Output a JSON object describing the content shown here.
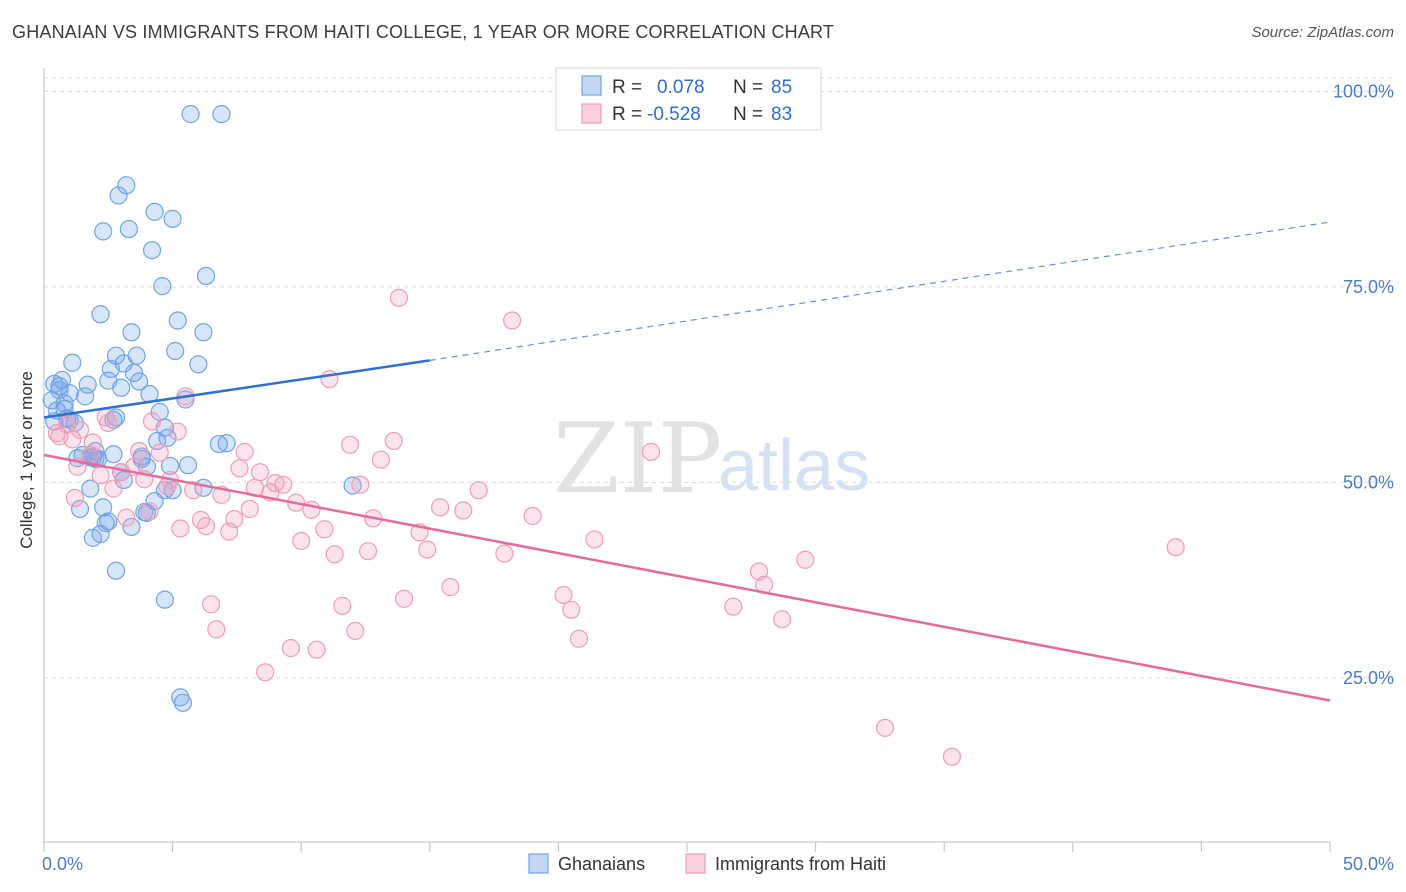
{
  "title": "GHANAIAN VS IMMIGRANTS FROM HAITI COLLEGE, 1 YEAR OR MORE CORRELATION CHART",
  "source": "Source: ZipAtlas.com",
  "watermark": {
    "zip": "ZIP",
    "atlas": "atlas"
  },
  "legend": {
    "r_label": "R =",
    "n_label": "N =",
    "rows": [
      {
        "r": "0.078",
        "n": "85"
      },
      {
        "r": "-0.528",
        "n": "83"
      }
    ]
  },
  "bottom_legend": [
    "Ghanaians",
    "Immigrants from Haiti"
  ],
  "chart_data": {
    "type": "scatter",
    "xlabel": "",
    "ylabel": "College, 1 year or more",
    "xlim": [
      0,
      50
    ],
    "ylim": [
      4,
      103
    ],
    "x_tick_labels": [
      "0.0%",
      "50.0%"
    ],
    "y_ticks": [
      25,
      50,
      75,
      100
    ],
    "y_tick_labels": [
      "25.0%",
      "50.0%",
      "75.0%",
      "100.0%"
    ],
    "grid": true,
    "legend_position": "top-center",
    "series": [
      {
        "name": "Ghanaians",
        "color": "#6fa3e8",
        "line_color": "#2f6fce",
        "trend": {
          "x0": 0,
          "y0": 58.3,
          "x1": 15,
          "y1": 65.6,
          "x_dash_end": 50,
          "y_dash_end": 83.3
        },
        "points": [
          [
            0.3,
            60.5
          ],
          [
            0.4,
            62.6
          ],
          [
            0.5,
            59.2
          ],
          [
            0.6,
            61.8
          ],
          [
            0.7,
            63.1
          ],
          [
            0.8,
            60.1
          ],
          [
            0.9,
            58.2
          ],
          [
            1.0,
            61.4
          ],
          [
            1.1,
            65.3
          ],
          [
            1.2,
            57.6
          ],
          [
            1.3,
            53.1
          ],
          [
            1.4,
            46.6
          ],
          [
            1.6,
            61.0
          ],
          [
            1.7,
            62.5
          ],
          [
            1.8,
            49.2
          ],
          [
            1.9,
            53.2
          ],
          [
            2.0,
            54.0
          ],
          [
            2.1,
            53.0
          ],
          [
            2.2,
            71.5
          ],
          [
            2.3,
            82.1
          ],
          [
            2.4,
            44.8
          ],
          [
            2.5,
            63.0
          ],
          [
            2.6,
            64.5
          ],
          [
            2.7,
            58.0
          ],
          [
            2.8,
            66.2
          ],
          [
            2.9,
            86.7
          ],
          [
            3.0,
            62.1
          ],
          [
            3.1,
            65.2
          ],
          [
            3.2,
            88.0
          ],
          [
            3.3,
            82.4
          ],
          [
            3.4,
            69.2
          ],
          [
            3.5,
            64.0
          ],
          [
            3.6,
            66.2
          ],
          [
            3.7,
            62.9
          ],
          [
            3.8,
            53.0
          ],
          [
            3.9,
            46.2
          ],
          [
            4.0,
            46.1
          ],
          [
            4.1,
            61.3
          ],
          [
            4.2,
            79.7
          ],
          [
            4.3,
            84.6
          ],
          [
            4.4,
            55.3
          ],
          [
            4.5,
            59.0
          ],
          [
            4.6,
            75.1
          ],
          [
            4.7,
            57.0
          ],
          [
            4.8,
            55.7
          ],
          [
            4.9,
            52.1
          ],
          [
            5.0,
            83.7
          ],
          [
            5.1,
            66.8
          ],
          [
            5.2,
            70.7
          ],
          [
            5.3,
            22.5
          ],
          [
            5.4,
            21.8
          ],
          [
            5.5,
            60.6
          ],
          [
            5.7,
            97.1
          ],
          [
            6.0,
            65.1
          ],
          [
            6.2,
            69.2
          ],
          [
            6.3,
            76.4
          ],
          [
            6.9,
            97.1
          ],
          [
            7.1,
            55.0
          ],
          [
            6.2,
            49.3
          ],
          [
            6.8,
            54.9
          ],
          [
            0.4,
            57.8
          ],
          [
            0.6,
            62.3
          ],
          [
            0.8,
            59.4
          ],
          [
            1.0,
            58.0
          ],
          [
            1.5,
            53.5
          ],
          [
            1.8,
            53.2
          ],
          [
            2.0,
            53.0
          ],
          [
            2.2,
            43.4
          ],
          [
            2.3,
            46.8
          ],
          [
            2.5,
            45.0
          ],
          [
            2.7,
            53.6
          ],
          [
            2.8,
            58.3
          ],
          [
            3.1,
            50.3
          ],
          [
            3.4,
            44.3
          ],
          [
            3.8,
            53.3
          ],
          [
            4.0,
            52.0
          ],
          [
            4.3,
            47.6
          ],
          [
            4.7,
            49.0
          ],
          [
            4.7,
            35.0
          ],
          [
            3.0,
            51.3
          ],
          [
            2.8,
            38.7
          ],
          [
            12.0,
            49.6
          ],
          [
            5.0,
            49.0
          ],
          [
            5.6,
            52.2
          ],
          [
            1.9,
            42.9
          ]
        ]
      },
      {
        "name": "Immigrants from Haiti",
        "color": "#f19bb6",
        "line_color": "#e46b9b",
        "trend": {
          "x0": 0,
          "y0": 53.5,
          "x1": 50,
          "y1": 22.1
        },
        "points": [
          [
            0.5,
            56.3
          ],
          [
            0.6,
            55.9
          ],
          [
            0.9,
            57.4
          ],
          [
            1.1,
            55.5
          ],
          [
            1.2,
            48.0
          ],
          [
            1.3,
            52.0
          ],
          [
            1.4,
            56.7
          ],
          [
            1.8,
            53.5
          ],
          [
            1.9,
            55.1
          ],
          [
            2.2,
            50.9
          ],
          [
            2.4,
            58.3
          ],
          [
            2.5,
            57.6
          ],
          [
            2.7,
            49.2
          ],
          [
            3.0,
            51.3
          ],
          [
            3.2,
            45.5
          ],
          [
            3.5,
            52.0
          ],
          [
            3.7,
            54.0
          ],
          [
            3.9,
            50.4
          ],
          [
            4.1,
            46.3
          ],
          [
            4.2,
            57.8
          ],
          [
            4.5,
            53.8
          ],
          [
            4.8,
            49.5
          ],
          [
            4.9,
            50.3
          ],
          [
            5.2,
            56.5
          ],
          [
            5.3,
            44.1
          ],
          [
            5.5,
            61.0
          ],
          [
            5.8,
            49.0
          ],
          [
            6.1,
            45.2
          ],
          [
            6.3,
            44.4
          ],
          [
            6.5,
            34.4
          ],
          [
            6.7,
            31.2
          ],
          [
            6.9,
            48.4
          ],
          [
            7.2,
            43.7
          ],
          [
            7.4,
            45.3
          ],
          [
            7.6,
            51.8
          ],
          [
            7.8,
            53.9
          ],
          [
            8.0,
            46.6
          ],
          [
            8.2,
            49.3
          ],
          [
            8.4,
            51.3
          ],
          [
            8.6,
            25.7
          ],
          [
            8.8,
            48.7
          ],
          [
            9.0,
            49.9
          ],
          [
            9.3,
            49.7
          ],
          [
            9.6,
            28.8
          ],
          [
            9.8,
            47.4
          ],
          [
            10.0,
            42.5
          ],
          [
            10.4,
            46.5
          ],
          [
            10.6,
            28.6
          ],
          [
            10.9,
            44.0
          ],
          [
            11.1,
            63.2
          ],
          [
            11.3,
            40.8
          ],
          [
            11.6,
            34.2
          ],
          [
            11.9,
            54.8
          ],
          [
            12.1,
            31.0
          ],
          [
            12.3,
            49.7
          ],
          [
            12.6,
            41.2
          ],
          [
            12.8,
            45.4
          ],
          [
            13.1,
            52.9
          ],
          [
            13.6,
            55.3
          ],
          [
            13.8,
            73.6
          ],
          [
            14.0,
            35.1
          ],
          [
            14.6,
            43.6
          ],
          [
            14.9,
            41.4
          ],
          [
            15.4,
            46.8
          ],
          [
            15.8,
            36.6
          ],
          [
            16.3,
            46.4
          ],
          [
            16.9,
            49.0
          ],
          [
            18.2,
            70.7
          ],
          [
            17.9,
            40.9
          ],
          [
            19.0,
            45.7
          ],
          [
            20.2,
            35.6
          ],
          [
            20.5,
            33.7
          ],
          [
            20.8,
            30.0
          ],
          [
            21.4,
            42.7
          ],
          [
            23.6,
            53.9
          ],
          [
            26.8,
            34.1
          ],
          [
            27.8,
            38.6
          ],
          [
            28.0,
            36.9
          ],
          [
            28.7,
            32.5
          ],
          [
            29.6,
            40.1
          ],
          [
            32.7,
            18.6
          ],
          [
            35.3,
            14.9
          ],
          [
            44.0,
            41.7
          ]
        ]
      }
    ]
  }
}
